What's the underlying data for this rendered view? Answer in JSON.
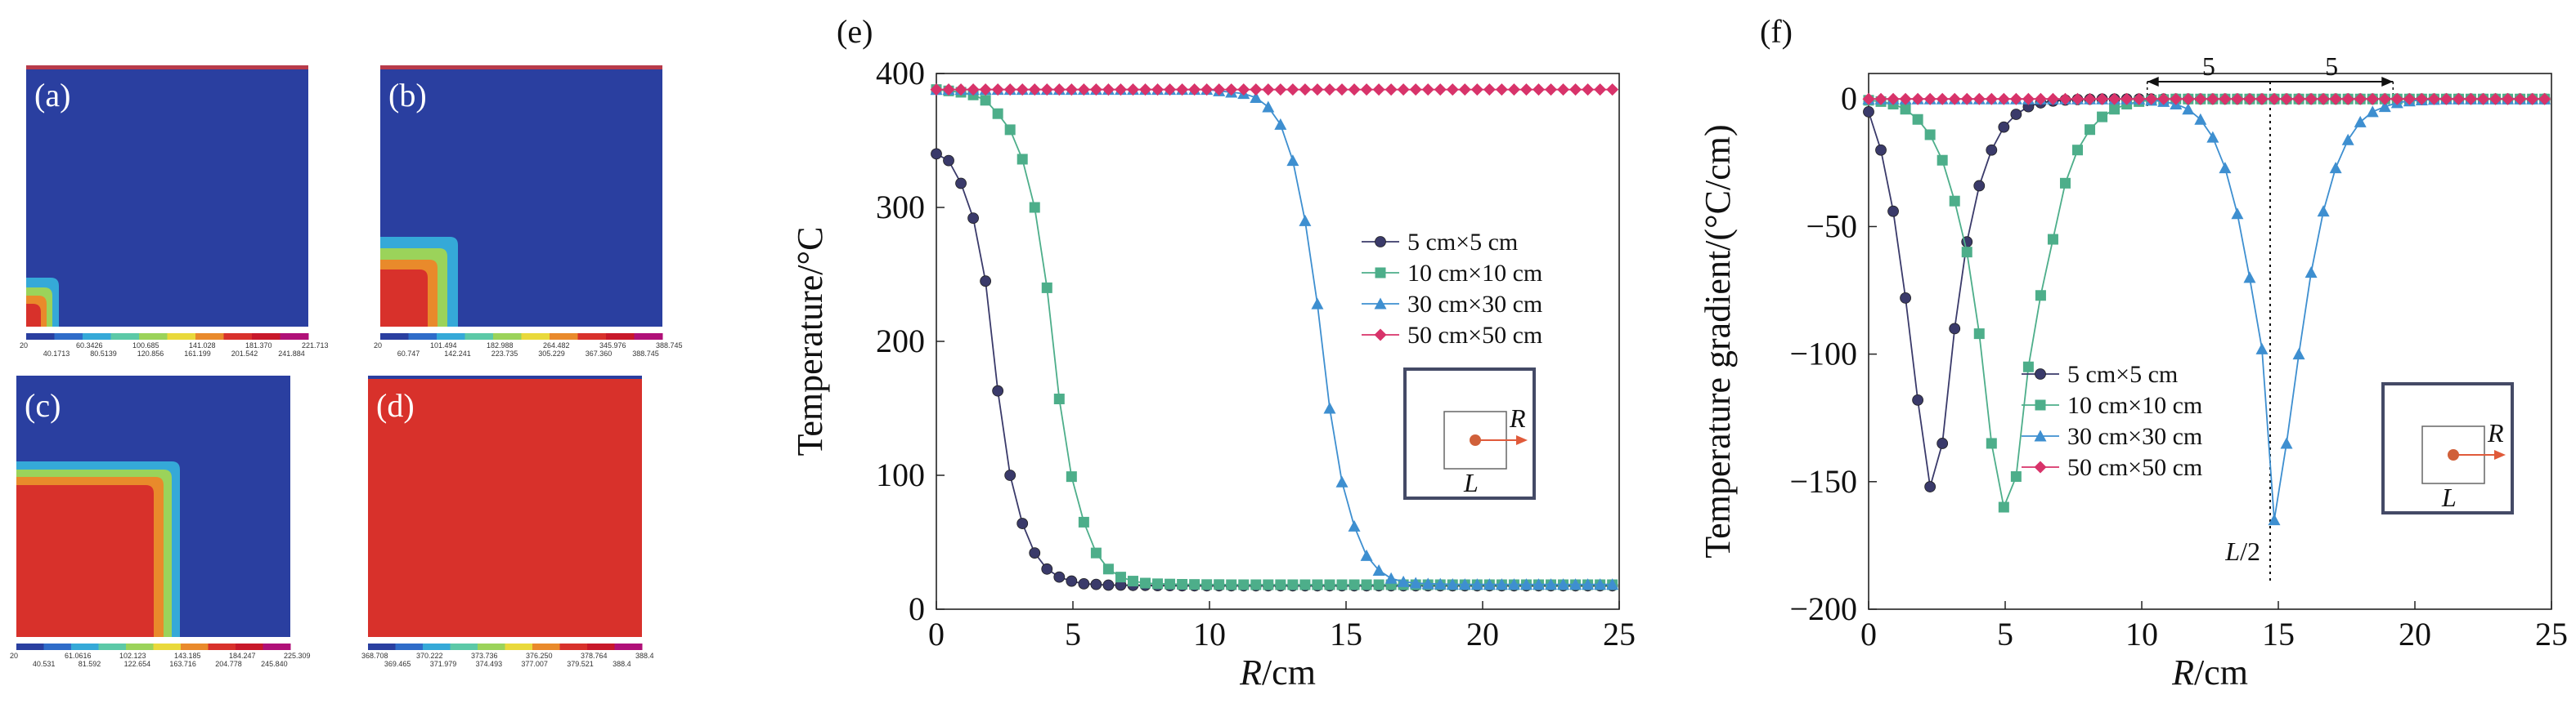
{
  "fem_panels": [
    {
      "label": "(a)",
      "colorbar_ticks_top": [
        "20",
        "60.3426",
        "100.685",
        "141.028",
        "181.370",
        "221.713"
      ],
      "colorbar_ticks_bottom": [
        "40.1713",
        "80.5139",
        "120.856",
        "161.199",
        "201.542",
        "241.884"
      ]
    },
    {
      "label": "(b)",
      "colorbar_ticks_top": [
        "20",
        "101.494",
        "182.988",
        "264.482",
        "345.976",
        "388.745"
      ],
      "colorbar_ticks_bottom": [
        "60.747",
        "142.241",
        "223.735",
        "305.229",
        "367.360",
        "388.745"
      ]
    },
    {
      "label": "(c)",
      "colorbar_ticks_top": [
        "20",
        "61.0616",
        "102.123",
        "143.185",
        "184.247",
        "225.309"
      ],
      "colorbar_ticks_bottom": [
        "40.531",
        "81.592",
        "122.654",
        "163.716",
        "204.778",
        "245.840"
      ]
    },
    {
      "label": "(d)",
      "colorbar_ticks_top": [
        "368.708",
        "370.222",
        "373.736",
        "376.250",
        "378.764",
        "388.4"
      ],
      "colorbar_ticks_bottom": [
        "369.465",
        "371.979",
        "374.493",
        "377.007",
        "379.521",
        "388.4"
      ]
    }
  ],
  "fem_colormap": [
    "#2a3fa0",
    "#2f6cc9",
    "#35a9d8",
    "#5cc9a7",
    "#9bd35a",
    "#e9d93b",
    "#e98a2b",
    "#d8312b",
    "#c8182a",
    "#b01078"
  ],
  "colors": {
    "s5": "#3a3a6a",
    "s10": "#4dae8a",
    "s30": "#3e8fd0",
    "s50": "#d8336a",
    "inset_arrow": "#e05a3a",
    "inset_dot": "#d0603a",
    "inset_frame": "#444a66"
  },
  "chart_data": [
    {
      "type": "line",
      "panel_label": "(e)",
      "title": "",
      "xlabel_italic": "R",
      "xlabel_unit": "/cm",
      "ylabel": "Temperature/°C",
      "xlim": [
        0,
        25
      ],
      "ylim": [
        0,
        400
      ],
      "xticks": [
        0,
        5,
        10,
        15,
        20,
        25
      ],
      "yticks": [
        0,
        100,
        200,
        300,
        400
      ],
      "grid": false,
      "legend_position": "center-right",
      "inset_labels": {
        "R": "R",
        "L": "L"
      },
      "series": [
        {
          "name": "5 cm×5 cm",
          "marker": "circle",
          "color_key": "s5",
          "x": [
            0,
            0.45,
            0.9,
            1.35,
            1.8,
            2.25,
            2.7,
            3.15,
            3.6,
            4.05,
            4.5,
            4.95,
            5.4,
            5.85,
            6.3,
            6.75,
            7.2,
            7.65,
            8.1,
            8.55,
            9,
            9.45,
            9.9,
            10.35,
            10.8,
            11.25,
            11.7,
            12.15,
            12.6,
            13.05,
            13.5,
            13.95,
            14.4,
            14.85,
            15.3,
            15.75,
            16.2,
            16.65,
            17.1,
            17.55,
            18,
            18.45,
            18.9,
            19.35,
            19.8,
            20.25,
            20.7,
            21.15,
            21.6,
            22.05,
            22.5,
            22.95,
            23.4,
            23.85,
            24.3,
            24.75
          ],
          "y": [
            340,
            335,
            318,
            292,
            245,
            163,
            100,
            64,
            42,
            30,
            24,
            21,
            19,
            18.5,
            18,
            18,
            17.8,
            17.8,
            17.6,
            17.6,
            17.5,
            17.5,
            17.5,
            17.5,
            17.5,
            17.5,
            17.5,
            17.5,
            17.5,
            17.5,
            17.5,
            17.5,
            17.5,
            17.5,
            17.5,
            17.5,
            17.5,
            17.5,
            17.5,
            17.5,
            17.5,
            17.5,
            17.5,
            17.5,
            17.5,
            17.5,
            17.5,
            17.5,
            17.5,
            17.5,
            17.5,
            17.5,
            17.5,
            17.5,
            17.5,
            17.5
          ]
        },
        {
          "name": "10 cm×10 cm",
          "marker": "square",
          "color_key": "s10",
          "x": [
            0,
            0.45,
            0.9,
            1.35,
            1.8,
            2.25,
            2.7,
            3.15,
            3.6,
            4.05,
            4.5,
            4.95,
            5.4,
            5.85,
            6.3,
            6.75,
            7.2,
            7.65,
            8.1,
            8.55,
            9,
            9.45,
            9.9,
            10.35,
            10.8,
            11.25,
            11.7,
            12.15,
            12.6,
            13.05,
            13.5,
            13.95,
            14.4,
            14.85,
            15.3,
            15.75,
            16.2,
            16.65,
            17.1,
            17.55,
            18,
            18.45,
            18.9,
            19.35,
            19.8,
            20.25,
            20.7,
            21.15,
            21.6,
            22.05,
            22.5,
            22.95,
            23.4,
            23.85,
            24.3,
            24.75
          ],
          "y": [
            388,
            387,
            386,
            384,
            380,
            370,
            358,
            336,
            300,
            240,
            157,
            99,
            65,
            42,
            30,
            24,
            21,
            19.5,
            19,
            18.8,
            18.6,
            18.5,
            18.4,
            18.4,
            18.3,
            18.3,
            18.3,
            18.3,
            18.3,
            18.3,
            18.3,
            18.3,
            18.3,
            18.3,
            18.3,
            18.3,
            18.3,
            18.3,
            18.3,
            18.3,
            18.3,
            18.3,
            18.3,
            18.3,
            18.3,
            18.3,
            18.3,
            18.3,
            18.3,
            18.3,
            18.3,
            18.3,
            18.3,
            18.3,
            18.3,
            18.3
          ]
        },
        {
          "name": "30 cm×30 cm",
          "marker": "triangle",
          "color_key": "s30",
          "x": [
            0,
            0.45,
            0.9,
            1.35,
            1.8,
            2.25,
            2.7,
            3.15,
            3.6,
            4.05,
            4.5,
            4.95,
            5.4,
            5.85,
            6.3,
            6.75,
            7.2,
            7.65,
            8.1,
            8.55,
            9,
            9.45,
            9.9,
            10.35,
            10.8,
            11.25,
            11.7,
            12.15,
            12.6,
            13.05,
            13.5,
            13.95,
            14.4,
            14.85,
            15.3,
            15.75,
            16.2,
            16.65,
            17.1,
            17.55,
            18,
            18.45,
            18.9,
            19.35,
            19.8,
            20.25,
            20.7,
            21.15,
            21.6,
            22.05,
            22.5,
            22.95,
            23.4,
            23.85,
            24.3,
            24.75
          ],
          "y": [
            388,
            388,
            388,
            388,
            388,
            388,
            388,
            388,
            388,
            388,
            388,
            388,
            388,
            388,
            388,
            388,
            388,
            388,
            388,
            388,
            388,
            388,
            388,
            387,
            386,
            385,
            382,
            375,
            362,
            335,
            290,
            228,
            150,
            95,
            62,
            40,
            29,
            23,
            20.5,
            19.5,
            19,
            18.8,
            18.6,
            18.5,
            18.5,
            18.5,
            18.5,
            18.5,
            18.5,
            18.5,
            18.5,
            18.5,
            18.5,
            18.5,
            18.5,
            18.5
          ]
        },
        {
          "name": "50 cm×50 cm",
          "marker": "diamond",
          "color_key": "s50",
          "x": [
            0,
            0.45,
            0.9,
            1.35,
            1.8,
            2.25,
            2.7,
            3.15,
            3.6,
            4.05,
            4.5,
            4.95,
            5.4,
            5.85,
            6.3,
            6.75,
            7.2,
            7.65,
            8.1,
            8.55,
            9,
            9.45,
            9.9,
            10.35,
            10.8,
            11.25,
            11.7,
            12.15,
            12.6,
            13.05,
            13.5,
            13.95,
            14.4,
            14.85,
            15.3,
            15.75,
            16.2,
            16.65,
            17.1,
            17.55,
            18,
            18.45,
            18.9,
            19.35,
            19.8,
            20.25,
            20.7,
            21.15,
            21.6,
            22.05,
            22.5,
            22.95,
            23.4,
            23.85,
            24.3,
            24.75
          ],
          "y": [
            388,
            388,
            388,
            388,
            388,
            388,
            388,
            388,
            388,
            388,
            388,
            388,
            388,
            388,
            388,
            388,
            388,
            388,
            388,
            388,
            388,
            388,
            388,
            388,
            388,
            388,
            388,
            388,
            388,
            388,
            388,
            388,
            388,
            388,
            388,
            388,
            388,
            388,
            388,
            388,
            388,
            388,
            388,
            388,
            388,
            388,
            388,
            388,
            388,
            388,
            388,
            388,
            388,
            388,
            388,
            388
          ]
        }
      ]
    },
    {
      "type": "line",
      "panel_label": "(f)",
      "title": "",
      "xlabel_italic": "R",
      "xlabel_unit": "/cm",
      "ylabel": "Temperature gradient/(°C/cm)",
      "xlim": [
        0,
        25
      ],
      "ylim": [
        -200,
        10
      ],
      "xticks": [
        0,
        5,
        10,
        15,
        20,
        25
      ],
      "yticks": [
        0,
        -50,
        -100,
        -150,
        -200
      ],
      "grid": false,
      "legend_position": "bottom-left",
      "inset_labels": {
        "R": "R",
        "L": "L"
      },
      "annotations": {
        "half_length": "L/2",
        "left_span": "5",
        "right_span": "5",
        "half_length_x": 14.7,
        "span_start": 10.2,
        "span_end": 19.2
      },
      "series": [
        {
          "name": "5 cm×5 cm",
          "marker": "circle",
          "color_key": "s5",
          "x": [
            0,
            0.45,
            0.9,
            1.35,
            1.8,
            2.25,
            2.7,
            3.15,
            3.6,
            4.05,
            4.5,
            4.95,
            5.4,
            5.85,
            6.3,
            6.75,
            7.2,
            7.65,
            8.1,
            8.55,
            9,
            9.45,
            9.9,
            10.35,
            10.8,
            11.25,
            11.7,
            12.15,
            12.6,
            13.05,
            13.5,
            13.95,
            14.4,
            14.85,
            15.3,
            15.75,
            16.2,
            16.65,
            17.1,
            17.55,
            18,
            18.45,
            18.9,
            19.35,
            19.8,
            20.25,
            20.7,
            21.15,
            21.6,
            22.05,
            22.5,
            22.95,
            23.4,
            23.85,
            24.3,
            24.75
          ],
          "y": [
            -5,
            -20,
            -44,
            -78,
            -118,
            -152,
            -135,
            -90,
            -56,
            -34,
            -20,
            -11,
            -6,
            -3,
            -1.5,
            -0.8,
            -0.4,
            -0.2,
            -0.1,
            0,
            0,
            0,
            0,
            0,
            0,
            0,
            0,
            0,
            0,
            0,
            0,
            0,
            0,
            0,
            0,
            0,
            0,
            0,
            0,
            0,
            0,
            0,
            0,
            0,
            0,
            0,
            0,
            0,
            0,
            0,
            0,
            0,
            0,
            0,
            0,
            0
          ]
        },
        {
          "name": "10 cm×10 cm",
          "marker": "square",
          "color_key": "s10",
          "x": [
            0,
            0.45,
            0.9,
            1.35,
            1.8,
            2.25,
            2.7,
            3.15,
            3.6,
            4.05,
            4.5,
            4.95,
            5.4,
            5.85,
            6.3,
            6.75,
            7.2,
            7.65,
            8.1,
            8.55,
            9,
            9.45,
            9.9,
            10.35,
            10.8,
            11.25,
            11.7,
            12.15,
            12.6,
            13.05,
            13.5,
            13.95,
            14.4,
            14.85,
            15.3,
            15.75,
            16.2,
            16.65,
            17.1,
            17.55,
            18,
            18.45,
            18.9,
            19.35,
            19.8,
            20.25,
            20.7,
            21.15,
            21.6,
            22.05,
            22.5,
            22.95,
            23.4,
            23.85,
            24.3,
            24.75
          ],
          "y": [
            -0.5,
            -1,
            -2,
            -4,
            -8,
            -14,
            -24,
            -40,
            -60,
            -92,
            -135,
            -160,
            -148,
            -105,
            -77,
            -55,
            -33,
            -20,
            -12,
            -7,
            -4,
            -2,
            -1,
            -0.5,
            -0.2,
            0,
            0,
            0,
            0,
            0,
            0,
            0,
            0,
            0,
            0,
            0,
            0,
            0,
            0,
            0,
            0,
            0,
            0,
            0,
            0,
            0,
            0,
            0,
            0,
            0,
            0,
            0,
            0,
            0,
            0,
            0
          ]
        },
        {
          "name": "30 cm×30 cm",
          "marker": "triangle",
          "color_key": "s30",
          "x": [
            0,
            0.45,
            0.9,
            1.35,
            1.8,
            2.25,
            2.7,
            3.15,
            3.6,
            4.05,
            4.5,
            4.95,
            5.4,
            5.85,
            6.3,
            6.75,
            7.2,
            7.65,
            8.1,
            8.55,
            9,
            9.45,
            9.9,
            10.35,
            10.8,
            11.25,
            11.7,
            12.15,
            12.6,
            13.05,
            13.5,
            13.95,
            14.4,
            14.85,
            15.3,
            15.75,
            16.2,
            16.65,
            17.1,
            17.55,
            18,
            18.45,
            18.9,
            19.35,
            19.8,
            20.25,
            20.7,
            21.15,
            21.6,
            22.05,
            22.5,
            22.95,
            23.4,
            23.85,
            24.3,
            24.75
          ],
          "y": [
            0,
            0,
            0,
            0,
            0,
            0,
            0,
            0,
            0,
            0,
            0,
            0,
            0,
            0,
            0,
            0,
            0,
            0,
            0,
            0,
            0,
            0,
            0,
            -0.5,
            -1,
            -2,
            -4,
            -8,
            -15,
            -27,
            -45,
            -70,
            -98,
            -165,
            -135,
            -100,
            -68,
            -44,
            -27,
            -16,
            -9,
            -5,
            -3,
            -1.5,
            -0.8,
            -0.4,
            -0.2,
            0,
            0,
            0,
            0,
            0,
            0,
            0,
            0,
            0
          ]
        },
        {
          "name": "50 cm×50 cm",
          "marker": "diamond",
          "color_key": "s50",
          "x": [
            0,
            0.45,
            0.9,
            1.35,
            1.8,
            2.25,
            2.7,
            3.15,
            3.6,
            4.05,
            4.5,
            4.95,
            5.4,
            5.85,
            6.3,
            6.75,
            7.2,
            7.65,
            8.1,
            8.55,
            9,
            9.45,
            9.9,
            10.35,
            10.8,
            11.25,
            11.7,
            12.15,
            12.6,
            13.05,
            13.5,
            13.95,
            14.4,
            14.85,
            15.3,
            15.75,
            16.2,
            16.65,
            17.1,
            17.55,
            18,
            18.45,
            18.9,
            19.35,
            19.8,
            20.25,
            20.7,
            21.15,
            21.6,
            22.05,
            22.5,
            22.95,
            23.4,
            23.85,
            24.3,
            24.75
          ],
          "y": [
            0,
            0,
            0,
            0,
            0,
            0,
            0,
            0,
            0,
            0,
            0,
            0,
            0,
            0,
            0,
            0,
            0,
            0,
            0,
            0,
            0,
            0,
            0,
            0,
            0,
            0,
            0,
            0,
            0,
            0,
            0,
            0,
            0,
            0,
            0,
            0,
            0,
            0,
            0,
            0,
            0,
            0,
            0,
            0,
            0,
            0,
            0,
            0,
            0,
            0,
            0,
            0,
            0,
            0,
            0,
            0
          ]
        }
      ]
    }
  ]
}
